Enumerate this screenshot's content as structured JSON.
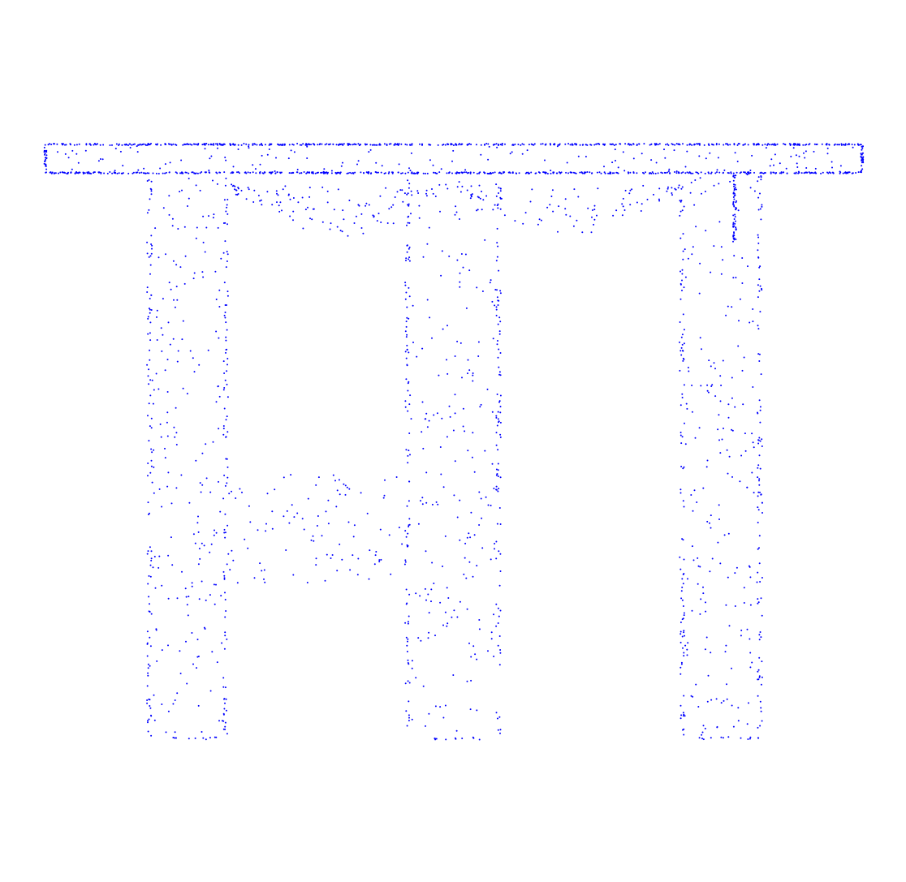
{
  "figure": {
    "kind": "point-cloud",
    "subject": "table-with-four-legs",
    "point_color": "#0000ff",
    "background_color": "#ffffff",
    "point_count": 2800
  }
}
